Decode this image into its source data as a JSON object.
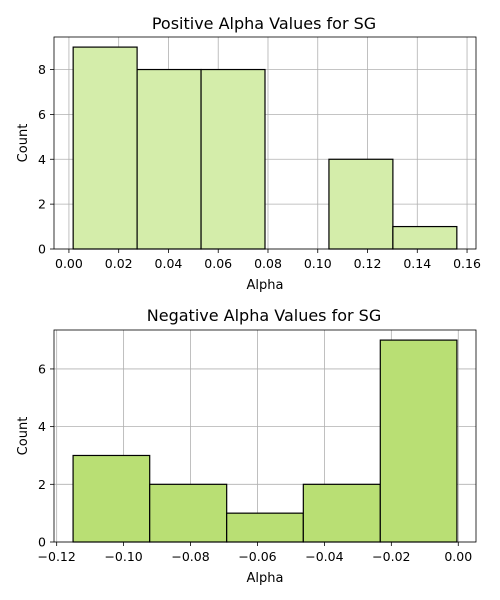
{
  "chart_data": [
    {
      "type": "bar",
      "title": "Positive Alpha Values for SG",
      "xlabel": "Alpha",
      "ylabel": "Count",
      "bin_edges": [
        0.0017,
        0.0274,
        0.0531,
        0.0788,
        0.1045,
        0.1302,
        0.1559
      ],
      "values": [
        9,
        8,
        8,
        0,
        4,
        1
      ],
      "xlim": [
        -0.006,
        0.1636
      ],
      "ylim": [
        0,
        9.45
      ],
      "xticks": [
        0.0,
        0.02,
        0.04,
        0.06,
        0.08,
        0.1,
        0.12,
        0.14,
        0.16
      ],
      "xtick_labels": [
        "0.00",
        "0.02",
        "0.04",
        "0.06",
        "0.08",
        "0.10",
        "0.12",
        "0.14",
        "0.16"
      ],
      "yticks": [
        0,
        2,
        4,
        6,
        8
      ],
      "ytick_labels": [
        "0",
        "2",
        "4",
        "6",
        "8"
      ],
      "grid": true,
      "bar_color": "#d4edaa"
    },
    {
      "type": "bar",
      "title": "Negative Alpha Values for SG",
      "xlabel": "Alpha",
      "ylabel": "Count",
      "bin_edges": [
        -0.1151,
        -0.0922,
        -0.0692,
        -0.0463,
        -0.0233,
        -0.0004
      ],
      "values": [
        3,
        2,
        1,
        2,
        7
      ],
      "xlim": [
        -0.1208,
        0.0053
      ],
      "ylim": [
        0,
        7.35
      ],
      "xticks": [
        -0.12,
        -0.1,
        -0.08,
        -0.06,
        -0.04,
        -0.02,
        0.0
      ],
      "xtick_labels": [
        "−0.12",
        "−0.10",
        "−0.08",
        "−0.06",
        "−0.04",
        "−0.02",
        "0.00"
      ],
      "yticks": [
        0,
        2,
        4,
        6
      ],
      "ytick_labels": [
        "0",
        "2",
        "4",
        "6"
      ],
      "grid": true,
      "bar_color": "#b9df74"
    }
  ]
}
